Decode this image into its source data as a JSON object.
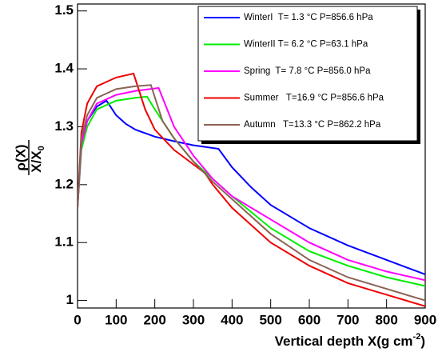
{
  "chart_data": {
    "type": "line",
    "x_label": "Vertical depth X(g cm",
    "x_label_superscript": "-2",
    "x_label_end": ")",
    "y_label_numerator": "ρ(X)",
    "y_label_denominator": "X/X",
    "y_label_subscript": "0",
    "xlim": [
      0,
      900
    ],
    "ylim": [
      0.987,
      1.512
    ],
    "xticks": [
      0,
      100,
      200,
      300,
      400,
      500,
      600,
      700,
      800,
      900
    ],
    "yticks": [
      1,
      1.1,
      1.2,
      1.3,
      1.4,
      1.5
    ],
    "legend_position": "upper right",
    "series": [
      {
        "name": "WinterI  T= 1.3 °C P=856.6 hPa",
        "color": "#0000ff",
        "x": [
          0,
          10,
          25,
          50,
          75,
          100,
          125,
          150,
          200,
          250,
          300,
          365,
          400,
          450,
          500,
          600,
          700,
          800,
          900
        ],
        "values": [
          1.16,
          1.27,
          1.31,
          1.335,
          1.345,
          1.32,
          1.305,
          1.295,
          1.283,
          1.275,
          1.268,
          1.262,
          1.23,
          1.195,
          1.165,
          1.125,
          1.095,
          1.07,
          1.045
        ]
      },
      {
        "name": "WinterII T= 6.2 °C P=63.1 hPa",
        "color": "#00ee00",
        "x": [
          0,
          10,
          25,
          50,
          100,
          150,
          180,
          200,
          250,
          300,
          350,
          400,
          500,
          600,
          700,
          800,
          900
        ],
        "values": [
          1.16,
          1.26,
          1.3,
          1.33,
          1.345,
          1.35,
          1.352,
          1.33,
          1.28,
          1.24,
          1.21,
          1.18,
          1.125,
          1.085,
          1.06,
          1.04,
          1.025
        ]
      },
      {
        "name": "Spring  T= 7.8 °C P=856.0 hPa",
        "color": "#ff00ff",
        "x": [
          0,
          10,
          25,
          50,
          100,
          150,
          210,
          250,
          300,
          350,
          400,
          500,
          600,
          700,
          800,
          900
        ],
        "values": [
          1.16,
          1.27,
          1.31,
          1.34,
          1.355,
          1.362,
          1.367,
          1.3,
          1.25,
          1.21,
          1.18,
          1.14,
          1.1,
          1.07,
          1.05,
          1.035
        ]
      },
      {
        "name": "Summer   T=16.9 °C P=856.6 hPa",
        "color": "#ee0000",
        "x": [
          0,
          10,
          25,
          50,
          100,
          145,
          175,
          200,
          250,
          300,
          330,
          350,
          400,
          500,
          600,
          700,
          800,
          900
        ],
        "values": [
          1.16,
          1.29,
          1.34,
          1.37,
          1.385,
          1.392,
          1.33,
          1.295,
          1.26,
          1.235,
          1.22,
          1.2,
          1.16,
          1.1,
          1.06,
          1.03,
          1.01,
          0.99
        ]
      },
      {
        "name": "Autumn   T=13.3 °C P=862.2 hPa",
        "color": "#8b6355",
        "x": [
          0,
          10,
          25,
          50,
          100,
          150,
          190,
          220,
          250,
          300,
          350,
          400,
          500,
          600,
          700,
          800,
          900
        ],
        "values": [
          1.16,
          1.28,
          1.32,
          1.35,
          1.365,
          1.37,
          1.372,
          1.31,
          1.28,
          1.24,
          1.205,
          1.175,
          1.115,
          1.07,
          1.04,
          1.02,
          1.0
        ]
      }
    ]
  }
}
